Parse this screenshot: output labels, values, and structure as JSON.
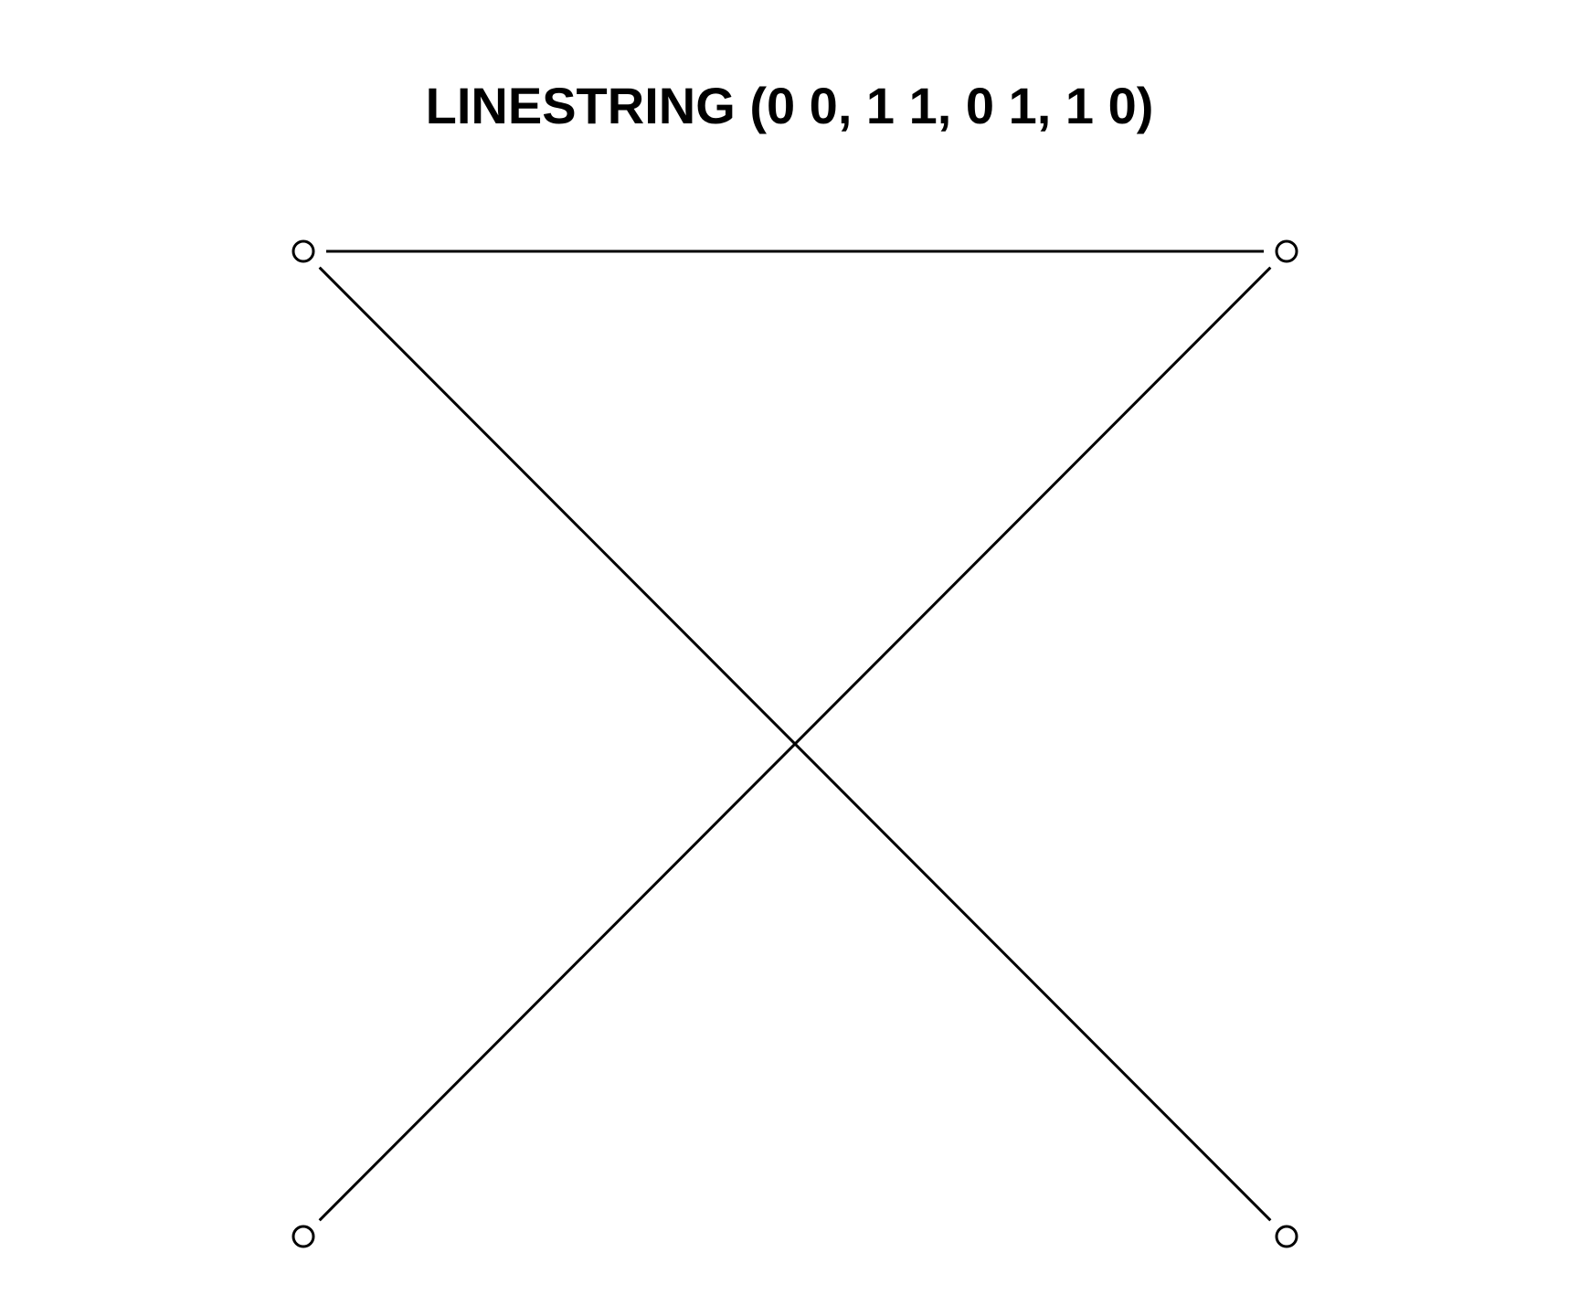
{
  "title": "LINESTRING (0 0, 1 1, 0 1, 1 0)",
  "geometry": {
    "type": "LINESTRING",
    "vertices": [
      {
        "x": 0,
        "y": 0
      },
      {
        "x": 1,
        "y": 1
      },
      {
        "x": 0,
        "y": 1
      },
      {
        "x": 1,
        "y": 0
      }
    ]
  },
  "colors": {
    "stroke": "#000000",
    "background": "#ffffff"
  }
}
